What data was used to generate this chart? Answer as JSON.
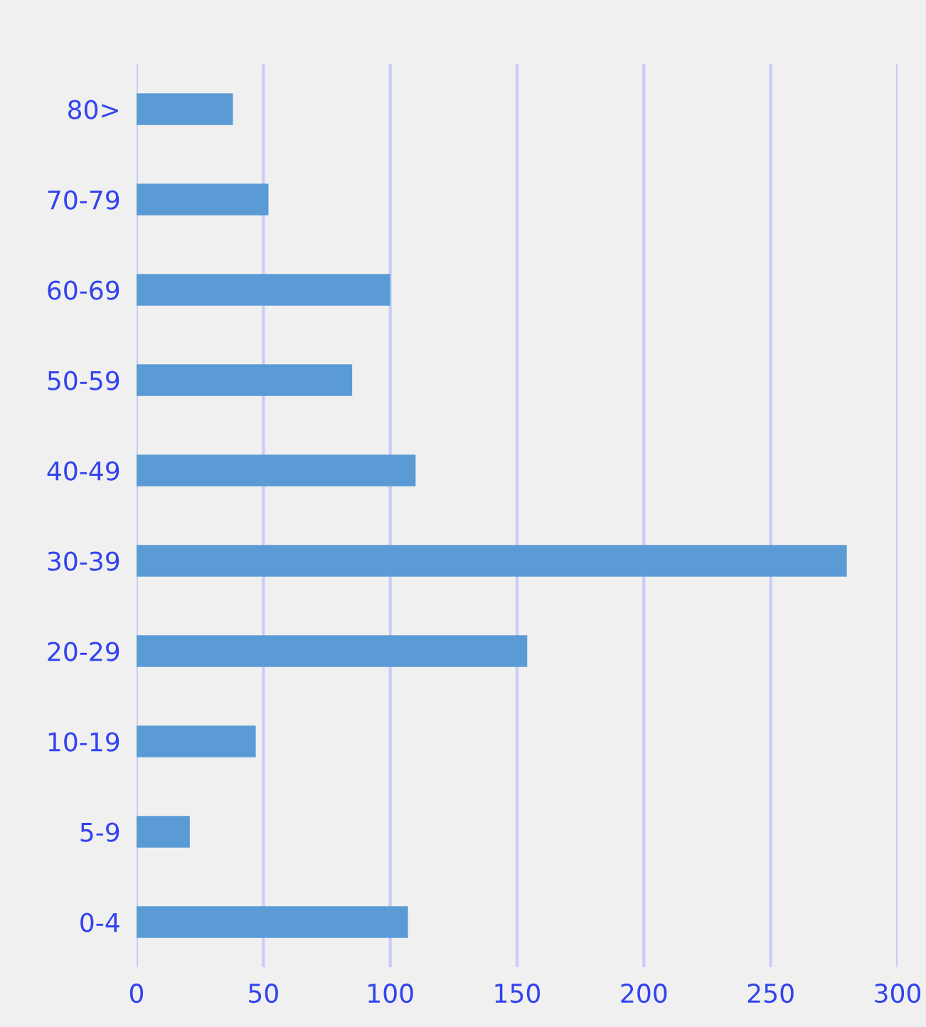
{
  "chart_data": {
    "type": "bar",
    "orientation": "horizontal",
    "categories": [
      "80>",
      "70-79",
      "60-69",
      "50-59",
      "40-49",
      "30-39",
      "20-29",
      "10-19",
      "5-9",
      "0-4"
    ],
    "values": [
      38,
      52,
      100,
      85,
      110,
      280,
      154,
      47,
      21,
      107
    ],
    "color": "#5b9bd5",
    "xlim": [
      0,
      300
    ],
    "xticks": [
      0,
      50,
      100,
      150,
      200,
      250,
      300
    ],
    "grid": "x"
  }
}
